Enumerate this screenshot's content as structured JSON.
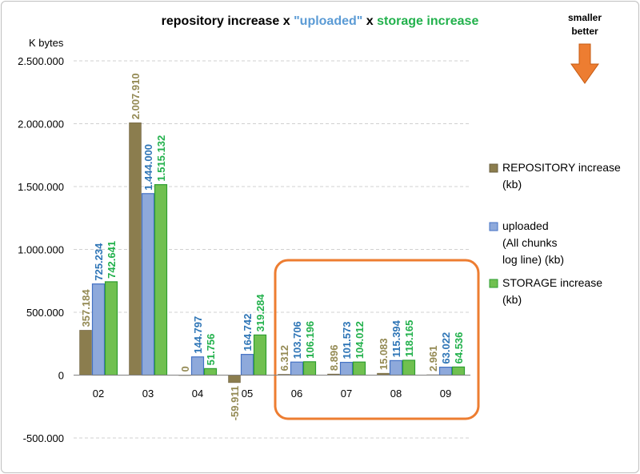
{
  "chart_data": {
    "type": "bar",
    "title_parts": [
      {
        "text": "repository increase x ",
        "color": "#000000"
      },
      {
        "text": "\"uploaded\"",
        "color": "#5B9BD5"
      },
      {
        "text": "  x  ",
        "color": "#000000"
      },
      {
        "text": "storage increase",
        "color": "#22B14C"
      }
    ],
    "ylabel": "K bytes",
    "categories": [
      "02",
      "03",
      "04",
      "05",
      "06",
      "07",
      "08",
      "09"
    ],
    "ylim": [
      -500000,
      2500000
    ],
    "yticks": [
      -500000,
      0,
      500000,
      1000000,
      1500000,
      2000000,
      2500000
    ],
    "ytick_labels": [
      "-500.000",
      "0",
      "500.000",
      "1.000.000",
      "1.500.000",
      "2.000.000",
      "2.500.000"
    ],
    "grid": true,
    "legend_position": "right",
    "series": [
      {
        "name": "REPOSITORY increase (kb)",
        "legend_lines": [
          "REPOSITORY increase",
          "(kb)"
        ],
        "color": "#8B7D4E",
        "label_color": "#948A54",
        "values": [
          357184,
          2007910,
          0,
          -59911,
          6312,
          8896,
          15083,
          2961
        ],
        "labels": [
          "357.184",
          "2.007.910",
          "0",
          "-59.911",
          "6.312",
          "8.896",
          "15.083",
          "2.961"
        ]
      },
      {
        "name": "uploaded (All chunks log line) (kb)",
        "legend_lines": [
          "uploaded",
          "(All chunks",
          " log line) (kb)"
        ],
        "color": "#8EA9DB",
        "label_color": "#2E75B6",
        "values": [
          725234,
          1444000,
          144797,
          164742,
          103706,
          101573,
          115394,
          63022
        ],
        "labels": [
          "725.234",
          "1.444.000",
          "144.797",
          "164.742",
          "103.706",
          "101.573",
          "115.394",
          "63.022"
        ]
      },
      {
        "name": "STORAGE increase (kb)",
        "legend_lines": [
          "STORAGE increase",
          "(kb)"
        ],
        "color": "#70C050",
        "label_color": "#22B14C",
        "values": [
          742641,
          1515132,
          51756,
          319284,
          106196,
          104012,
          118165,
          64536
        ],
        "labels": [
          "742.641",
          "1.515.132",
          "51.756",
          "319.284",
          "106.196",
          "104.012",
          "118.165",
          "64.536"
        ]
      }
    ],
    "annotation": {
      "lines": [
        "smaller",
        "better"
      ],
      "arrow_color": "#ED7D31"
    },
    "highlight_box_color": "#ED7D31"
  }
}
